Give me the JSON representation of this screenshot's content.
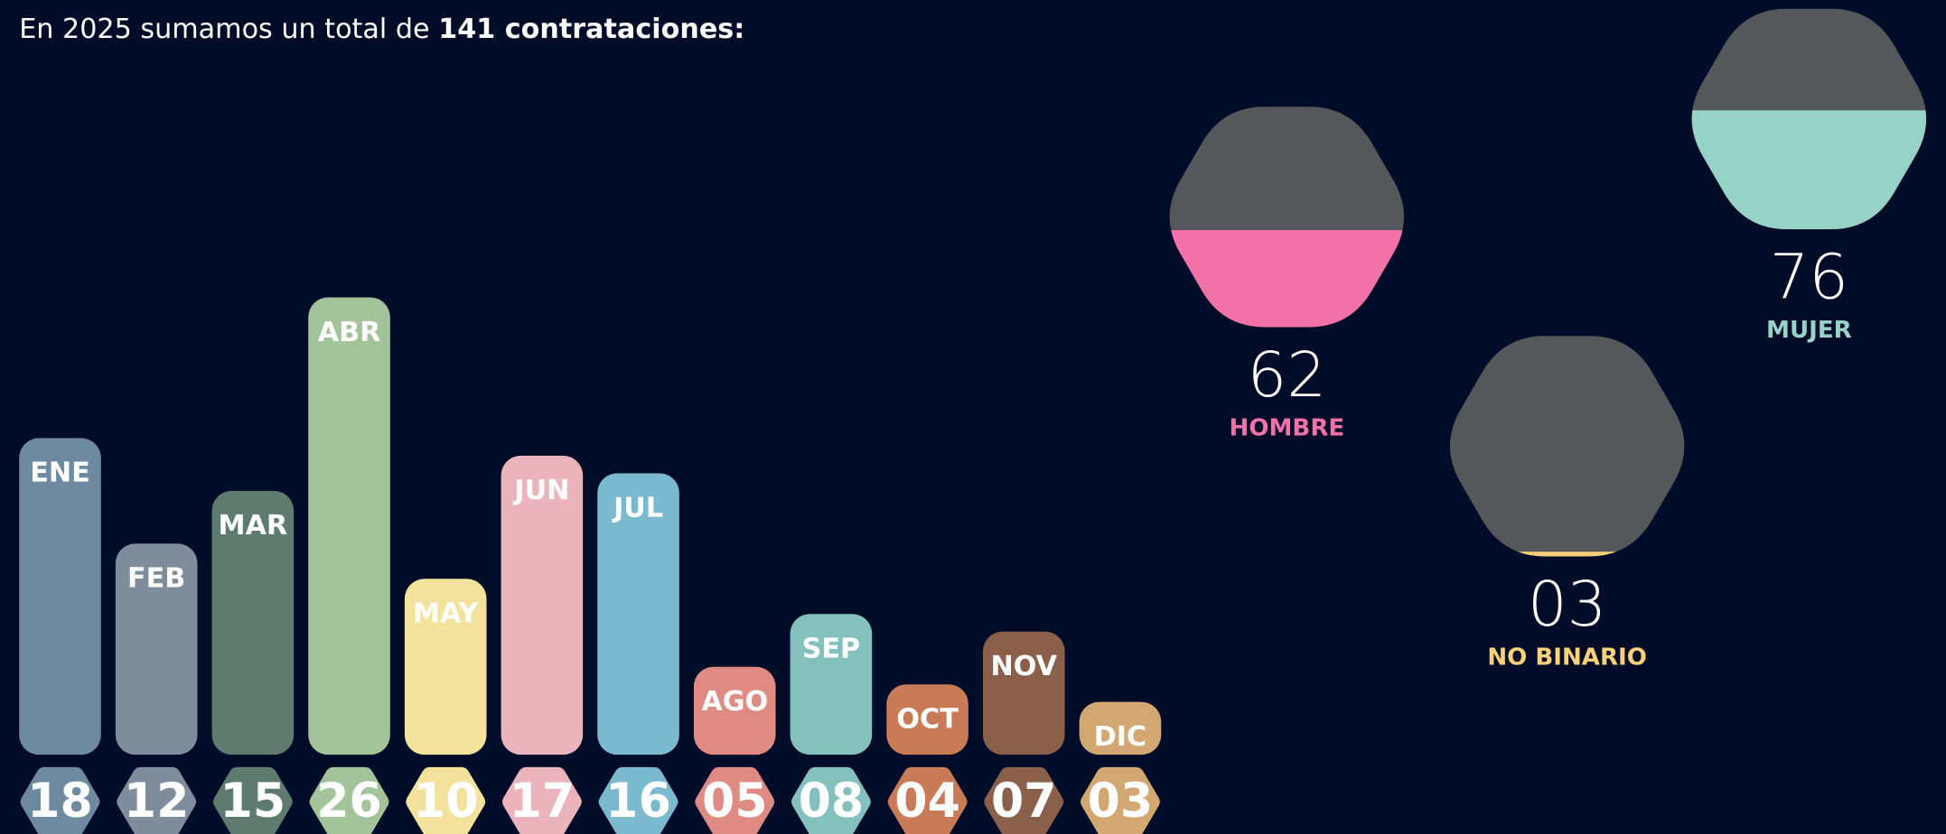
{
  "chart_data": [
    {
      "type": "bar",
      "title": "En 2025 sumamos un total de",
      "title_bold": "141 contrataciones:",
      "categories": [
        "ENE",
        "FEB",
        "MAR",
        "ABR",
        "MAY",
        "JUN",
        "JUL",
        "AGO",
        "SEP",
        "OCT",
        "NOV",
        "DIC"
      ],
      "values": [
        18,
        12,
        15,
        26,
        10,
        17,
        16,
        5,
        8,
        4,
        7,
        3
      ],
      "value_labels": [
        "18",
        "12",
        "15",
        "26",
        "10",
        "17",
        "16",
        "05",
        "08",
        "04",
        "07",
        "03"
      ],
      "colors": [
        "#6e8aa0",
        "#7e8c9c",
        "#5f7a6e",
        "#a3c49a",
        "#f3e29c",
        "#ebb4bd",
        "#7bb9cf",
        "#e08a84",
        "#84c1bc",
        "#c97a57",
        "#8a604a",
        "#d3a771"
      ]
    },
    {
      "type": "hexfill",
      "categories": [
        "HOMBRE",
        "MUJER",
        "NO BINARIO"
      ],
      "values": [
        62,
        76,
        3
      ],
      "value_labels": [
        "62",
        "76",
        "03"
      ],
      "colors": [
        "#f171a8",
        "#96d2c5",
        "#fdd177"
      ]
    }
  ]
}
